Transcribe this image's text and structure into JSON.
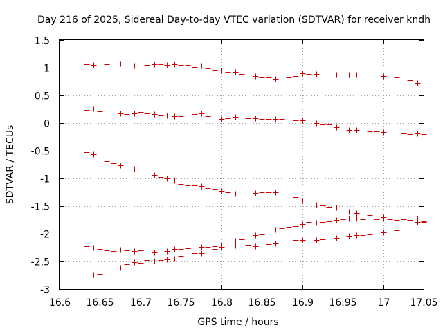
{
  "chart_data": {
    "type": "scatter",
    "title": "Day 216 of 2025, Sidereal Day-to-day VTEC variation (SDTVAR) for receiver kndh",
    "xlabel": "GPS time / hours",
    "ylabel": "SDTVAR / TECUs",
    "xlim": [
      16.6,
      17.05
    ],
    "ylim": [
      -3,
      1.5
    ],
    "xticks": [
      "16.6",
      "16.65",
      "16.7",
      "16.75",
      "16.8",
      "16.85",
      "16.9",
      "16.95",
      "17",
      "17.05"
    ],
    "yticks": [
      "1.5",
      "1",
      "0.5",
      "0",
      "-0.5",
      "-1",
      "-1.5",
      "-2",
      "-2.5",
      "-3"
    ],
    "marker": "+",
    "color": "#cc0000",
    "grid": true,
    "series": [
      {
        "name": "s1",
        "x": [
          16.633,
          16.642,
          16.65,
          16.658,
          16.667,
          16.675,
          16.683,
          16.692,
          16.7,
          16.708,
          16.717,
          16.725,
          16.733,
          16.742,
          16.75,
          16.758,
          16.767,
          16.775,
          16.783,
          16.792,
          16.8,
          16.808,
          16.817,
          16.825,
          16.833,
          16.842,
          16.85,
          16.858,
          16.867,
          16.875,
          16.883,
          16.892,
          16.9,
          16.908,
          16.917,
          16.925,
          16.933,
          16.942,
          16.95,
          16.958,
          16.967,
          16.975,
          16.983,
          16.992,
          17.0,
          17.008,
          17.017,
          17.025,
          17.033,
          17.042,
          17.05
        ],
        "y": [
          1.06,
          1.05,
          1.07,
          1.06,
          1.04,
          1.07,
          1.04,
          1.04,
          1.04,
          1.05,
          1.06,
          1.06,
          1.05,
          1.06,
          1.05,
          1.05,
          1.01,
          1.04,
          0.99,
          0.96,
          0.95,
          0.92,
          0.92,
          0.89,
          0.88,
          0.85,
          0.83,
          0.83,
          0.8,
          0.79,
          0.83,
          0.85,
          0.9,
          0.89,
          0.89,
          0.88,
          0.87,
          0.87,
          0.87,
          0.88,
          0.88,
          0.88,
          0.87,
          0.87,
          0.85,
          0.84,
          0.82,
          0.79,
          0.77,
          0.73,
          0.68
        ]
      },
      {
        "name": "s2",
        "x": [
          16.633,
          16.642,
          16.65,
          16.658,
          16.667,
          16.675,
          16.683,
          16.692,
          16.7,
          16.708,
          16.717,
          16.725,
          16.733,
          16.742,
          16.75,
          16.758,
          16.767,
          16.775,
          16.783,
          16.792,
          16.8,
          16.808,
          16.817,
          16.825,
          16.833,
          16.842,
          16.85,
          16.858,
          16.867,
          16.875,
          16.883,
          16.892,
          16.9,
          16.908,
          16.917,
          16.925,
          16.933,
          16.942,
          16.95,
          16.958,
          16.967,
          16.975,
          16.983,
          16.992,
          17.0,
          17.008,
          17.017,
          17.025,
          17.033,
          17.042,
          17.05
        ],
        "y": [
          0.24,
          0.26,
          0.21,
          0.23,
          0.19,
          0.17,
          0.16,
          0.17,
          0.2,
          0.17,
          0.16,
          0.15,
          0.14,
          0.13,
          0.13,
          0.14,
          0.16,
          0.17,
          0.13,
          0.1,
          0.08,
          0.09,
          0.11,
          0.1,
          0.09,
          0.09,
          0.08,
          0.07,
          0.07,
          0.08,
          0.06,
          0.05,
          0.05,
          0.02,
          0.0,
          -0.02,
          -0.03,
          -0.07,
          -0.1,
          -0.12,
          -0.13,
          -0.14,
          -0.15,
          -0.15,
          -0.16,
          -0.17,
          -0.18,
          -0.19,
          -0.2,
          -0.19,
          -0.2
        ]
      },
      {
        "name": "s3",
        "x": [
          16.633,
          16.642,
          16.65,
          16.658,
          16.667,
          16.675,
          16.683,
          16.692,
          16.7,
          16.708,
          16.717,
          16.725,
          16.733,
          16.742,
          16.75,
          16.758,
          16.767,
          16.775,
          16.783,
          16.792,
          16.8,
          16.808,
          16.817,
          16.825,
          16.833,
          16.842,
          16.85,
          16.858,
          16.867,
          16.875,
          16.883,
          16.892,
          16.9,
          16.908,
          16.917,
          16.925,
          16.933,
          16.942,
          16.95,
          16.958,
          16.967,
          16.975,
          16.983,
          16.992,
          17.0,
          17.008,
          17.017,
          17.025,
          17.033,
          17.042,
          17.05
        ],
        "y": [
          -0.53,
          -0.56,
          -0.66,
          -0.69,
          -0.73,
          -0.76,
          -0.79,
          -0.83,
          -0.87,
          -0.91,
          -0.94,
          -0.97,
          -1.0,
          -1.04,
          -1.1,
          -1.12,
          -1.13,
          -1.14,
          -1.17,
          -1.19,
          -1.23,
          -1.25,
          -1.27,
          -1.27,
          -1.27,
          -1.26,
          -1.25,
          -1.25,
          -1.25,
          -1.28,
          -1.31,
          -1.34,
          -1.4,
          -1.44,
          -1.47,
          -1.49,
          -1.51,
          -1.53,
          -1.56,
          -1.6,
          -1.62,
          -1.64,
          -1.66,
          -1.68,
          -1.7,
          -1.72,
          -1.73,
          -1.74,
          -1.75,
          -1.76,
          -1.78
        ]
      },
      {
        "name": "s4",
        "x": [
          16.633,
          16.642,
          16.65,
          16.658,
          16.667,
          16.675,
          16.683,
          16.692,
          16.7,
          16.708,
          16.717,
          16.725,
          16.733,
          16.742,
          16.75,
          16.758,
          16.767,
          16.775,
          16.783,
          16.792,
          16.8,
          16.808,
          16.817,
          16.825,
          16.833,
          16.842,
          16.85,
          16.858,
          16.867,
          16.875,
          16.883,
          16.892,
          16.9,
          16.908,
          16.917,
          16.925,
          16.933,
          16.942,
          16.95,
          16.958,
          16.967,
          16.975,
          16.983,
          16.992,
          17.0,
          17.008,
          17.017,
          17.025,
          17.033,
          17.042,
          17.05
        ],
        "y": [
          -2.22,
          -2.25,
          -2.27,
          -2.3,
          -2.31,
          -2.29,
          -2.3,
          -2.31,
          -2.3,
          -2.32,
          -2.34,
          -2.33,
          -2.31,
          -2.28,
          -2.27,
          -2.26,
          -2.25,
          -2.24,
          -2.24,
          -2.22,
          -2.21,
          -2.21,
          -2.21,
          -2.21,
          -2.2,
          -2.22,
          -2.21,
          -2.19,
          -2.18,
          -2.16,
          -2.13,
          -2.11,
          -2.11,
          -2.12,
          -2.11,
          -2.1,
          -2.09,
          -2.07,
          -2.05,
          -2.04,
          -2.03,
          -2.02,
          -2.01,
          -2.0,
          -1.98,
          -1.96,
          -1.94,
          -1.92,
          -1.8,
          -1.79,
          -1.79
        ]
      },
      {
        "name": "s5",
        "x": [
          16.633,
          16.642,
          16.65,
          16.658,
          16.667,
          16.675,
          16.683,
          16.692,
          16.7,
          16.708,
          16.717,
          16.725,
          16.733,
          16.742,
          16.75,
          16.758,
          16.767,
          16.775,
          16.783,
          16.792,
          16.8,
          16.808,
          16.817,
          16.825,
          16.833,
          16.842,
          16.85,
          16.858,
          16.867,
          16.875,
          16.883,
          16.892,
          16.9,
          16.908,
          16.917,
          16.925,
          16.933,
          16.942,
          16.95,
          16.958,
          16.967,
          16.975,
          16.983,
          16.992,
          17.0,
          17.008,
          17.017,
          17.025,
          17.033,
          17.042,
          17.05
        ],
        "y": [
          -2.77,
          -2.74,
          -2.73,
          -2.7,
          -2.65,
          -2.61,
          -2.55,
          -2.51,
          -2.52,
          -2.48,
          -2.49,
          -2.47,
          -2.46,
          -2.45,
          -2.4,
          -2.37,
          -2.35,
          -2.35,
          -2.32,
          -2.28,
          -2.24,
          -2.16,
          -2.13,
          -2.1,
          -2.09,
          -2.02,
          -2.01,
          -1.96,
          -1.92,
          -1.9,
          -1.88,
          -1.86,
          -1.82,
          -1.79,
          -1.8,
          -1.79,
          -1.77,
          -1.75,
          -1.74,
          -1.73,
          -1.73,
          -1.74,
          -1.72,
          -1.74,
          -1.73,
          -1.74,
          -1.75,
          -1.74,
          -1.73,
          -1.72,
          -1.68
        ]
      }
    ]
  }
}
